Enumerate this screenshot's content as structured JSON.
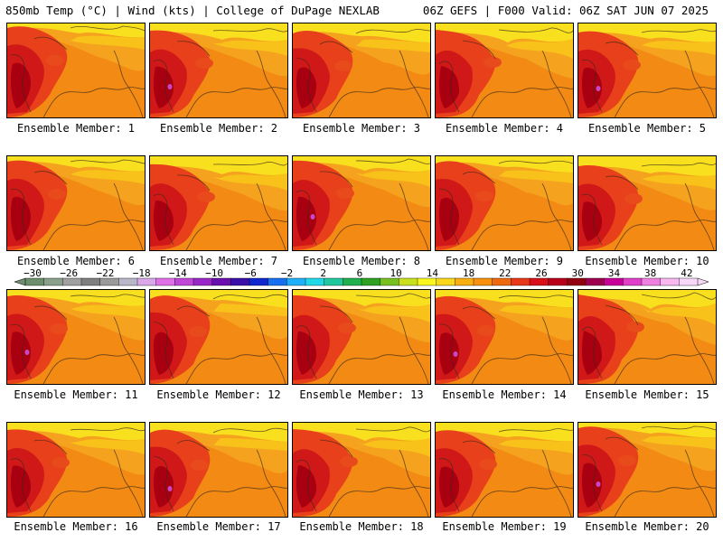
{
  "header": {
    "left": "850mb Temp (°C) | Wind (kts) | College of DuPage NEXLAB",
    "right": "06Z GEFS | F000 Valid: 06Z SAT JUN 07 2025"
  },
  "panels": [
    {
      "caption": "Ensemble Member: 1"
    },
    {
      "caption": "Ensemble Member: 2"
    },
    {
      "caption": "Ensemble Member: 3"
    },
    {
      "caption": "Ensemble Member: 4"
    },
    {
      "caption": "Ensemble Member: 5"
    },
    {
      "caption": "Ensemble Member: 6"
    },
    {
      "caption": "Ensemble Member: 7"
    },
    {
      "caption": "Ensemble Member: 8"
    },
    {
      "caption": "Ensemble Member: 9"
    },
    {
      "caption": "Ensemble Member: 10"
    },
    {
      "caption": "Ensemble Member: 11"
    },
    {
      "caption": "Ensemble Member: 12"
    },
    {
      "caption": "Ensemble Member: 13"
    },
    {
      "caption": "Ensemble Member: 14"
    },
    {
      "caption": "Ensemble Member: 15"
    },
    {
      "caption": "Ensemble Member: 16"
    },
    {
      "caption": "Ensemble Member: 17"
    },
    {
      "caption": "Ensemble Member: 18"
    },
    {
      "caption": "Ensemble Member: 19"
    },
    {
      "caption": "Ensemble Member: 20"
    }
  ],
  "colorbar": {
    "tick_labels": [
      "−30",
      "−26",
      "−22",
      "−18",
      "−14",
      "−10",
      "−6",
      "−2",
      "2",
      "6",
      "10",
      "14",
      "18",
      "22",
      "26",
      "30",
      "34",
      "38",
      "42"
    ],
    "colors": [
      "#6e8f6e",
      "#8aa08a",
      "#a0a0a0",
      "#7f7f7f",
      "#9a9a9a",
      "#b8b8c8",
      "#d8a8e8",
      "#e070e8",
      "#c048d8",
      "#9a28c8",
      "#6a10b0",
      "#3a10a8",
      "#1028d0",
      "#1870f0",
      "#20b0f8",
      "#20d8e8",
      "#20c8a0",
      "#20b050",
      "#30a020",
      "#78c020",
      "#c8e020",
      "#f8f820",
      "#f8d818",
      "#f8b010",
      "#f89010",
      "#f06810",
      "#e83818",
      "#d81018",
      "#b80018",
      "#900010",
      "#a00050",
      "#c80098",
      "#e040c8",
      "#f080e0",
      "#f8b8f0",
      "#f8d8f8"
    ]
  }
}
